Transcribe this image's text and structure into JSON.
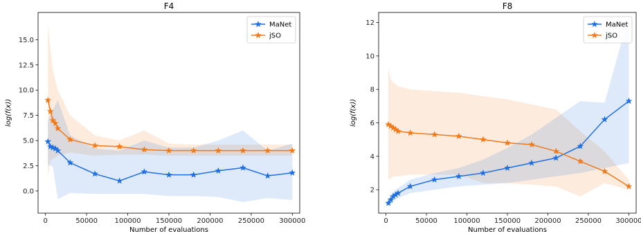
{
  "colors": {
    "manet": "#1f6fe0",
    "jso": "#f07a1a",
    "manet_band": "#cfe0f9",
    "jso_band": "#fbe0c9"
  },
  "chart_data": [
    {
      "type": "line",
      "title": "F4",
      "xlabel": "Number of evaluations",
      "ylabel": "log(f(x))",
      "xlim": [
        -9000,
        309000
      ],
      "ylim": [
        -2.2,
        17.7
      ],
      "xticks": [
        0,
        50000,
        100000,
        150000,
        200000,
        250000,
        300000
      ],
      "xtick_labels": [
        "0",
        "50000",
        "100000",
        "150000",
        "200000",
        "250000",
        "300000"
      ],
      "yticks": [
        0.0,
        2.5,
        5.0,
        7.5,
        10.0,
        12.5,
        15.0
      ],
      "ytick_labels": [
        "0.0",
        "2.5",
        "5.0",
        "7.5",
        "10.0",
        "12.5",
        "15.0"
      ],
      "legend_position": "top-right",
      "x": [
        3000,
        6000,
        9000,
        12000,
        15000,
        30000,
        60000,
        90000,
        120000,
        150000,
        180000,
        210000,
        240000,
        270000,
        300000
      ],
      "series": [
        {
          "name": "MaNet",
          "color_key": "manet",
          "values": [
            4.9,
            4.4,
            4.3,
            4.2,
            4.0,
            2.8,
            1.7,
            1.0,
            1.9,
            1.6,
            1.6,
            2.0,
            2.3,
            1.5,
            1.8
          ],
          "lower": [
            2.6,
            2.5,
            2.4,
            0.8,
            -0.8,
            -0.2,
            -0.3,
            -0.3,
            -0.3,
            -0.5,
            -0.5,
            -0.6,
            -1.1,
            -0.7,
            -0.9
          ],
          "upper": [
            7.0,
            7.5,
            8.0,
            8.5,
            9.0,
            5.5,
            4.2,
            4.0,
            5.0,
            4.3,
            4.3,
            5.0,
            6.0,
            4.0,
            4.7
          ]
        },
        {
          "name": "jSO",
          "color_key": "jso",
          "values": [
            9.0,
            7.9,
            7.0,
            6.7,
            6.2,
            5.1,
            4.5,
            4.4,
            4.1,
            4.0,
            4.0,
            4.0,
            4.0,
            4.0,
            4.0
          ],
          "lower": [
            1.5,
            3.0,
            3.2,
            3.3,
            3.5,
            3.8,
            3.5,
            3.6,
            3.6,
            3.5,
            3.5,
            3.5,
            3.5,
            3.5,
            3.5
          ],
          "upper": [
            16.6,
            14.0,
            12.0,
            11.0,
            10.0,
            7.5,
            5.5,
            5.0,
            6.0,
            4.7,
            4.6,
            4.6,
            4.6,
            4.6,
            4.6
          ]
        }
      ]
    },
    {
      "type": "line",
      "title": "F8",
      "xlabel": "Number of evaluations",
      "ylabel": "log(f(x))",
      "xlim": [
        -9000,
        309000
      ],
      "ylim": [
        0.6,
        12.6
      ],
      "xticks": [
        0,
        50000,
        100000,
        150000,
        200000,
        250000,
        300000
      ],
      "xtick_labels": [
        "0",
        "50000",
        "100000",
        "150000",
        "200000",
        "250000",
        "300000"
      ],
      "yticks": [
        2,
        4,
        6,
        8,
        10,
        12
      ],
      "ytick_labels": [
        "2",
        "4",
        "6",
        "8",
        "10",
        "12"
      ],
      "legend_position": "top-right",
      "x": [
        3000,
        6000,
        9000,
        12000,
        15000,
        30000,
        60000,
        90000,
        120000,
        150000,
        180000,
        210000,
        240000,
        270000,
        300000
      ],
      "series": [
        {
          "name": "MaNet",
          "color_key": "manet",
          "values": [
            1.2,
            1.4,
            1.6,
            1.7,
            1.8,
            2.2,
            2.6,
            2.8,
            3.0,
            3.3,
            3.6,
            3.9,
            4.6,
            6.2,
            7.3
          ],
          "lower": [
            1.0,
            1.1,
            1.3,
            1.4,
            1.5,
            1.8,
            2.0,
            2.2,
            2.3,
            2.4,
            2.6,
            2.8,
            3.0,
            3.3,
            3.6
          ],
          "upper": [
            1.4,
            1.7,
            1.9,
            2.0,
            2.1,
            2.6,
            3.0,
            3.3,
            3.8,
            4.5,
            5.3,
            6.3,
            7.3,
            7.2,
            12.4
          ]
        },
        {
          "name": "jSO",
          "color_key": "jso",
          "values": [
            5.9,
            5.8,
            5.7,
            5.6,
            5.5,
            5.4,
            5.3,
            5.2,
            5.0,
            4.8,
            4.7,
            4.3,
            3.7,
            3.1,
            2.2
          ],
          "lower": [
            2.6,
            2.7,
            2.8,
            2.8,
            2.8,
            2.9,
            2.9,
            2.9,
            2.4,
            2.4,
            2.3,
            2.2,
            1.6,
            2.4,
            2.0
          ],
          "upper": [
            9.3,
            8.6,
            8.4,
            8.3,
            8.2,
            8.0,
            7.9,
            7.8,
            7.6,
            7.4,
            7.1,
            6.8,
            5.5,
            4.3,
            2.6
          ]
        }
      ]
    }
  ]
}
